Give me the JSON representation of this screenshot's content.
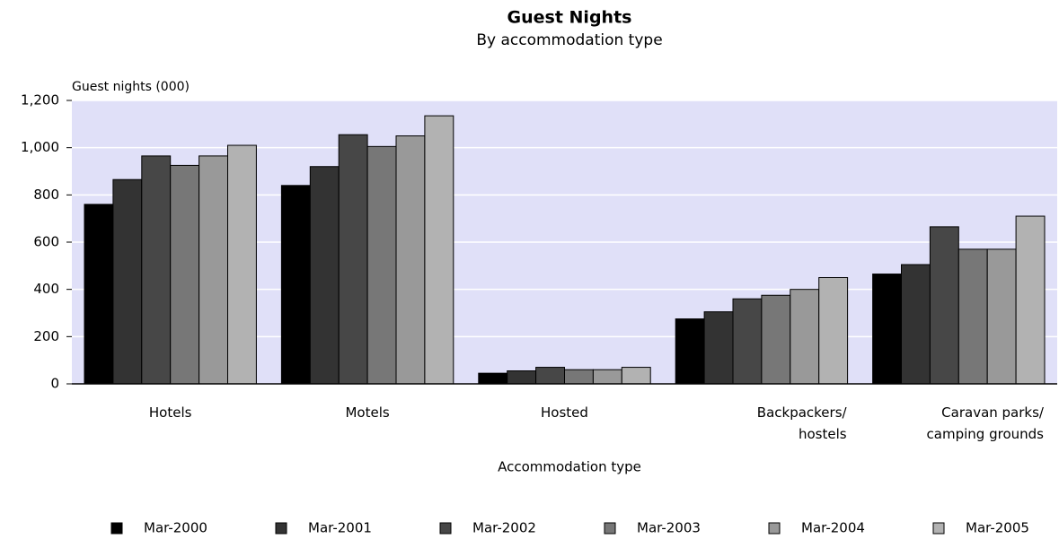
{
  "chart_data": {
    "type": "bar",
    "title": "Guest Nights",
    "subtitle": "By accommodation type",
    "y_label": "Guest nights (000)",
    "x_label": "Accommodation type",
    "categories": [
      "Hotels",
      "Motels",
      "Hosted",
      "Backpackers/\nhostels",
      "Caravan parks/\ncamping grounds"
    ],
    "series": [
      {
        "name": "Mar-2000",
        "color": "#000000",
        "values": [
          760,
          840,
          45,
          275,
          465
        ]
      },
      {
        "name": "Mar-2001",
        "color": "#333333",
        "values": [
          865,
          920,
          55,
          305,
          505
        ]
      },
      {
        "name": "Mar-2002",
        "color": "#474747",
        "values": [
          965,
          1055,
          70,
          360,
          665
        ]
      },
      {
        "name": "Mar-2003",
        "color": "#777777",
        "values": [
          925,
          1005,
          60,
          375,
          570
        ]
      },
      {
        "name": "Mar-2004",
        "color": "#999999",
        "values": [
          965,
          1050,
          60,
          400,
          570
        ]
      },
      {
        "name": "Mar-2005",
        "color": "#b2b2b2",
        "values": [
          1010,
          1135,
          70,
          450,
          710
        ]
      }
    ],
    "ylim": [
      0,
      1200
    ],
    "yticks": [
      0,
      200,
      400,
      600,
      800,
      {
        "value": 1000,
        "label": "1,000"
      },
      {
        "value": 1200,
        "label": "1,200"
      }
    ],
    "grid": true,
    "plot_background": "#e0e0f8"
  }
}
